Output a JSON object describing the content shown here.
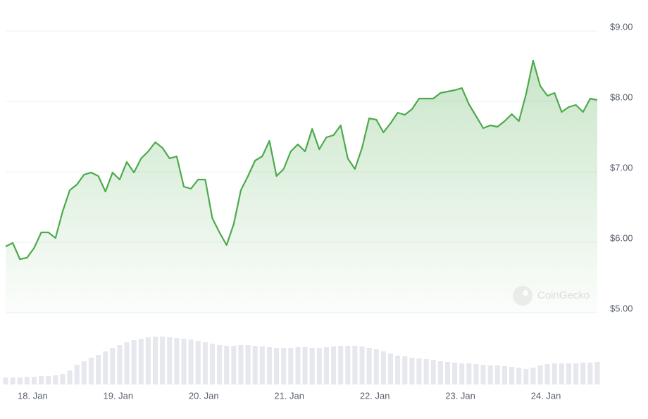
{
  "chart_data": {
    "type": "line",
    "series": [
      {
        "name": "Price",
        "color": "#4caa4c",
        "values": [
          5.94,
          5.99,
          5.76,
          5.78,
          5.92,
          6.14,
          6.14,
          6.06,
          6.44,
          6.74,
          6.82,
          6.96,
          6.99,
          6.94,
          6.72,
          6.99,
          6.89,
          7.14,
          6.99,
          7.19,
          7.29,
          7.42,
          7.34,
          7.19,
          7.22,
          6.79,
          6.76,
          6.89,
          6.89,
          6.34,
          6.14,
          5.96,
          6.26,
          6.74,
          6.94,
          7.16,
          7.22,
          7.44,
          6.94,
          7.04,
          7.29,
          7.39,
          7.29,
          7.61,
          7.32,
          7.49,
          7.52,
          7.66,
          7.19,
          7.04,
          7.34,
          7.76,
          7.74,
          7.56,
          7.69,
          7.84,
          7.81,
          7.89,
          8.04,
          8.04,
          8.04,
          8.12,
          8.14,
          8.16,
          8.19,
          7.96,
          7.79,
          7.62,
          7.66,
          7.64,
          7.72,
          7.82,
          7.72,
          8.1,
          8.58,
          8.22,
          8.08,
          8.12,
          7.85,
          7.92,
          7.95,
          7.85,
          8.04,
          8.02
        ]
      }
    ],
    "volume": {
      "color": "#e6e8ee",
      "ylim": [
        0,
        100
      ],
      "values": [
        10,
        10,
        10,
        11,
        11,
        12,
        12,
        13,
        15,
        20,
        28,
        33,
        38,
        42,
        47,
        52,
        56,
        60,
        63,
        65,
        67,
        68,
        68,
        67,
        66,
        65,
        64,
        62,
        60,
        58,
        56,
        55,
        55,
        56,
        56,
        55,
        54,
        53,
        52,
        52,
        52,
        53,
        53,
        52,
        52,
        53,
        54,
        55,
        55,
        55,
        54,
        52,
        50,
        47,
        44,
        41,
        40,
        38,
        37,
        36,
        35,
        33,
        32,
        31,
        30,
        30,
        29,
        28,
        27,
        27,
        26,
        25,
        24,
        22,
        24,
        27,
        29,
        30,
        30,
        30,
        30,
        31,
        31,
        32
      ]
    },
    "xlim": [
      0,
      83
    ],
    "xticks": [
      {
        "value": 3,
        "label": "18. Jan"
      },
      {
        "value": 15,
        "label": "19. Jan"
      },
      {
        "value": 27,
        "label": "20. Jan"
      },
      {
        "value": 39,
        "label": "21. Jan"
      },
      {
        "value": 51,
        "label": "22. Jan"
      },
      {
        "value": 63,
        "label": "23. Jan"
      },
      {
        "value": 75,
        "label": "24. Jan"
      }
    ],
    "ylim": [
      5,
      9
    ],
    "yticks": [
      {
        "value": 9,
        "label": "$9.00"
      },
      {
        "value": 8,
        "label": "$8.00"
      },
      {
        "value": 7,
        "label": "$7.00"
      },
      {
        "value": 6,
        "label": "$6.00"
      },
      {
        "value": 5,
        "label": "$5.00"
      }
    ],
    "grid": true,
    "watermark": "CoinGecko"
  }
}
